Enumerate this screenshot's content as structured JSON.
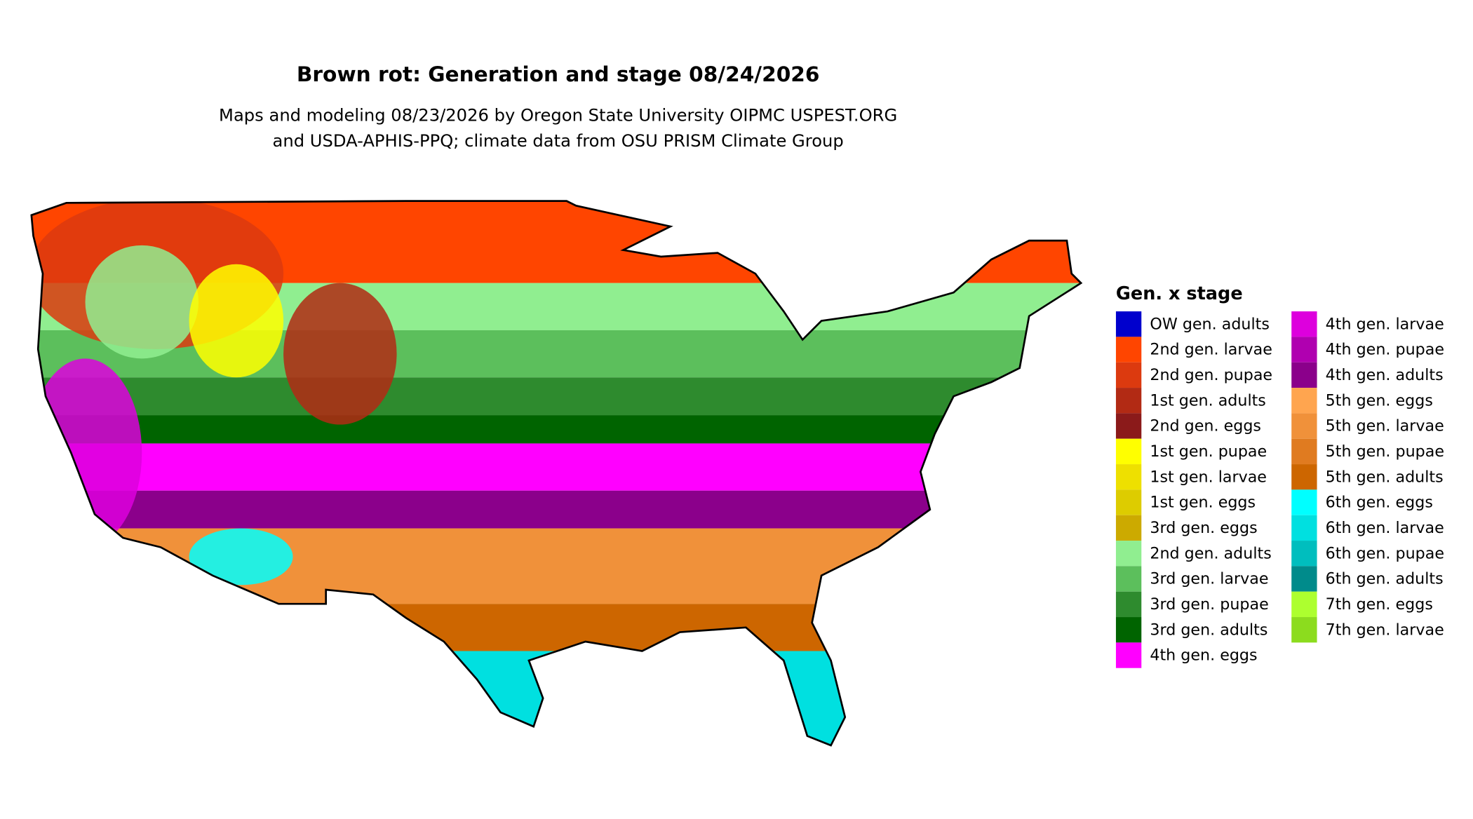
{
  "title": "Brown rot: Generation and stage 08/24/2026",
  "subtitle": [
    "Maps and modeling 08/23/2026 by Oregon State University OIPMC USPEST.ORG",
    "and USDA-APHIS-PPQ; climate data from OSU PRISM Climate Group"
  ],
  "legend": {
    "title": "Gen. x stage",
    "items": [
      {
        "label": "OW gen. adults",
        "color": "#0000CD"
      },
      {
        "label": "2nd gen. larvae",
        "color": "#FF4500"
      },
      {
        "label": "2nd gen. pupae",
        "color": "#DC3A0F"
      },
      {
        "label": "1st gen. adults",
        "color": "#B22A14"
      },
      {
        "label": "2nd gen. eggs",
        "color": "#8B1A1A"
      },
      {
        "label": "1st gen. pupae",
        "color": "#FFFF00"
      },
      {
        "label": "1st gen. larvae",
        "color": "#EEE000"
      },
      {
        "label": "1st gen. eggs",
        "color": "#DDCC00"
      },
      {
        "label": "3rd gen. eggs",
        "color": "#CCAA00"
      },
      {
        "label": "2nd gen. adults",
        "color": "#90EE90"
      },
      {
        "label": "3rd gen. larvae",
        "color": "#5CBF5C"
      },
      {
        "label": "3rd gen. pupae",
        "color": "#2E8B2E"
      },
      {
        "label": "3rd gen. adults",
        "color": "#006400"
      },
      {
        "label": "4th gen. eggs",
        "color": "#FF00FF"
      },
      {
        "label": "4th gen. larvae",
        "color": "#DD00DD"
      },
      {
        "label": "4th gen. pupae",
        "color": "#B000B0"
      },
      {
        "label": "4th gen. adults",
        "color": "#8B008B"
      },
      {
        "label": "5th gen. eggs",
        "color": "#FFA54F"
      },
      {
        "label": "5th gen. larvae",
        "color": "#F0913A"
      },
      {
        "label": "5th gen. pupae",
        "color": "#E07B20"
      },
      {
        "label": "5th gen. adults",
        "color": "#CD6600"
      },
      {
        "label": "6th gen. eggs",
        "color": "#00FFFF"
      },
      {
        "label": "6th gen. larvae",
        "color": "#00E0E0"
      },
      {
        "label": "6th gen. pupae",
        "color": "#00BEBE"
      },
      {
        "label": "6th gen. adults",
        "color": "#008B8B"
      },
      {
        "label": "7th gen. eggs",
        "color": "#ADFF2F"
      },
      {
        "label": "7th gen. larvae",
        "color": "#8CDC1E"
      }
    ]
  }
}
